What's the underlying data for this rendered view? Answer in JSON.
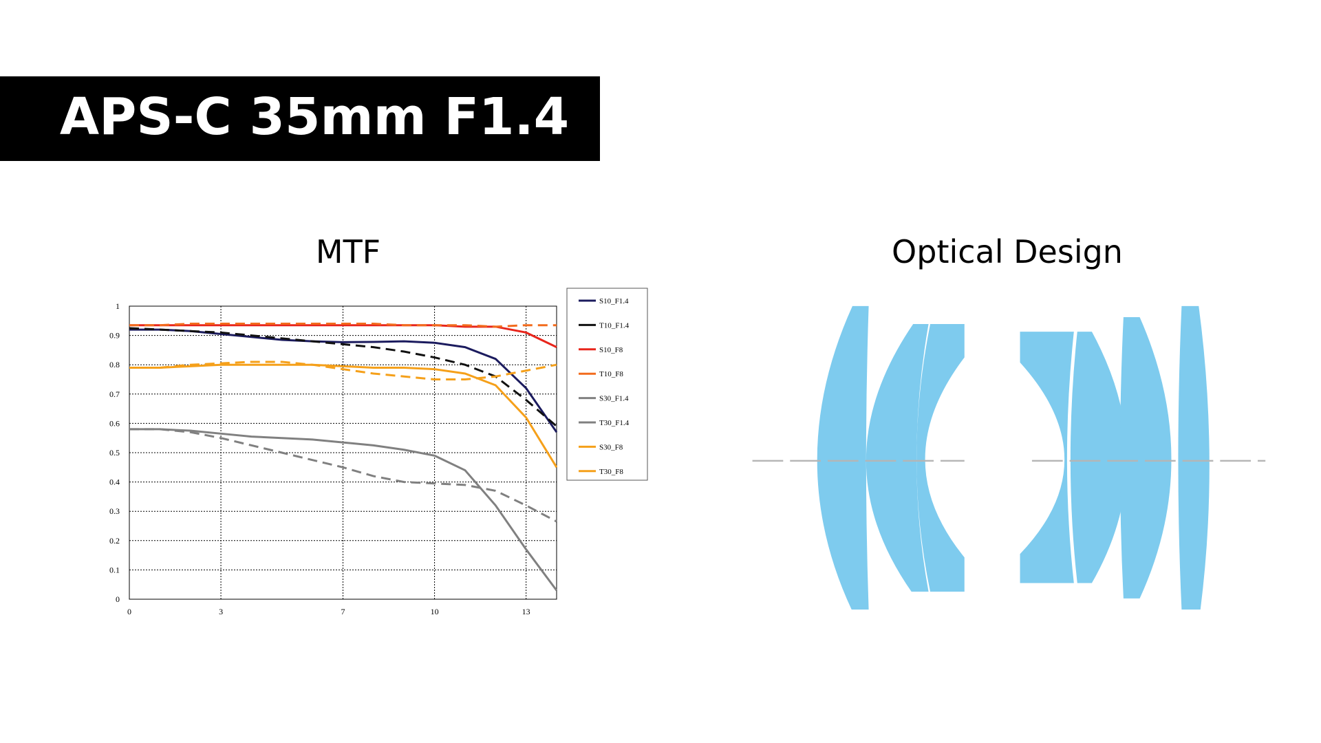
{
  "header": {
    "title": "APS-C 35mm F1.4"
  },
  "chart_data": {
    "type": "line",
    "title": "MTF",
    "x": [
      0,
      1,
      2,
      3,
      4,
      5,
      6,
      7,
      8,
      9,
      10,
      11,
      12,
      13,
      14
    ],
    "xlim": [
      0,
      14
    ],
    "xticks": [
      0,
      3,
      7,
      10,
      13
    ],
    "ylim": [
      0,
      1
    ],
    "yticks": [
      0,
      0.1,
      0.2,
      0.3,
      0.4,
      0.5,
      0.6,
      0.7,
      0.8,
      0.9,
      1
    ],
    "grid": true,
    "legend": "right",
    "series": [
      {
        "name": "S10_F1.4",
        "color": "#1b1b5e",
        "style": "solid",
        "values": [
          0.92,
          0.92,
          0.915,
          0.905,
          0.895,
          0.885,
          0.88,
          0.877,
          0.878,
          0.88,
          0.875,
          0.86,
          0.82,
          0.72,
          0.57
        ]
      },
      {
        "name": "T10_F1.4",
        "color": "#111111",
        "style": "dashed",
        "values": [
          0.925,
          0.92,
          0.915,
          0.91,
          0.9,
          0.89,
          0.88,
          0.87,
          0.86,
          0.845,
          0.825,
          0.8,
          0.76,
          0.68,
          0.59
        ]
      },
      {
        "name": "S10_F8",
        "color": "#e8251b",
        "style": "solid",
        "values": [
          0.935,
          0.935,
          0.935,
          0.935,
          0.935,
          0.935,
          0.935,
          0.935,
          0.935,
          0.935,
          0.935,
          0.93,
          0.93,
          0.91,
          0.86
        ]
      },
      {
        "name": "T10_F8",
        "color": "#f26b1d",
        "style": "dashed",
        "values": [
          0.935,
          0.935,
          0.94,
          0.94,
          0.94,
          0.94,
          0.94,
          0.94,
          0.94,
          0.935,
          0.935,
          0.935,
          0.93,
          0.935,
          0.935
        ]
      },
      {
        "name": "S30_F1.4",
        "color": "#808080",
        "style": "solid",
        "values": [
          0.58,
          0.58,
          0.575,
          0.565,
          0.555,
          0.55,
          0.545,
          0.535,
          0.525,
          0.51,
          0.49,
          0.44,
          0.32,
          0.17,
          0.03
        ]
      },
      {
        "name": "T30_F1.4",
        "color": "#808080",
        "style": "dashed",
        "values": [
          0.58,
          0.58,
          0.57,
          0.55,
          0.525,
          0.5,
          0.475,
          0.45,
          0.42,
          0.4,
          0.395,
          0.39,
          0.37,
          0.32,
          0.265
        ]
      },
      {
        "name": "S30_F8",
        "color": "#f5a01a",
        "style": "solid",
        "values": [
          0.79,
          0.79,
          0.795,
          0.8,
          0.8,
          0.8,
          0.8,
          0.795,
          0.79,
          0.79,
          0.785,
          0.77,
          0.73,
          0.62,
          0.45
        ]
      },
      {
        "name": "T30_F8",
        "color": "#f5a01a",
        "style": "dashed",
        "values": [
          0.79,
          0.79,
          0.8,
          0.805,
          0.81,
          0.81,
          0.8,
          0.785,
          0.77,
          0.76,
          0.75,
          0.75,
          0.76,
          0.78,
          0.8
        ]
      }
    ]
  },
  "optical_design": {
    "title": "Optical Design"
  }
}
